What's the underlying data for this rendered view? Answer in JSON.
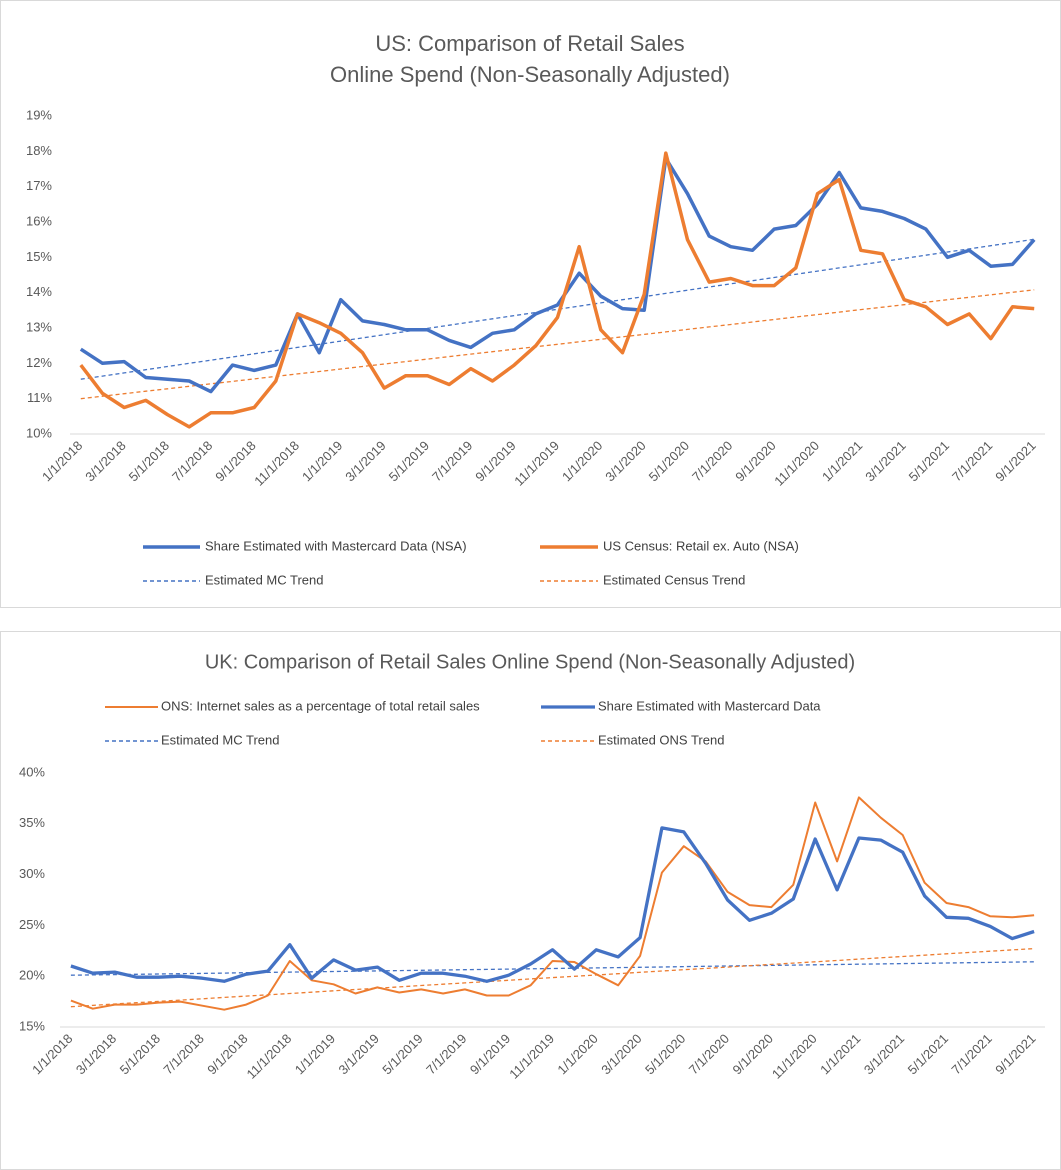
{
  "chart_data": [
    {
      "type": "line",
      "title": "US: Comparison of Retail Sales",
      "subtitle": "Online Spend (Non-Seasonally Adjusted)",
      "categories": [
        "1/1/2018",
        null,
        "3/1/2018",
        null,
        "5/1/2018",
        null,
        "7/1/2018",
        null,
        "9/1/2018",
        null,
        "11/1/2018",
        null,
        "1/1/2019",
        null,
        "3/1/2019",
        null,
        "5/1/2019",
        null,
        "7/1/2019",
        null,
        "9/1/2019",
        null,
        "11/1/2019",
        null,
        "1/1/2020",
        null,
        "3/1/2020",
        null,
        "5/1/2020",
        null,
        "7/1/2020",
        null,
        "9/1/2020",
        null,
        "11/1/2020",
        null,
        "1/1/2021",
        null,
        "3/1/2021",
        null,
        "5/1/2021",
        null,
        "7/1/2021",
        null,
        "9/1/2021"
      ],
      "series": [
        {
          "name": "Share Estimated with Mastercard Data (NSA)",
          "color": "#4472c4",
          "dash": false,
          "width": 3.5,
          "values": [
            12.4,
            12.0,
            12.05,
            11.6,
            11.55,
            11.5,
            11.2,
            11.95,
            11.8,
            11.95,
            13.4,
            12.3,
            13.8,
            13.2,
            13.1,
            12.95,
            12.95,
            12.65,
            12.45,
            12.85,
            12.95,
            13.4,
            13.65,
            14.55,
            13.9,
            13.55,
            13.5,
            17.8,
            16.8,
            15.6,
            15.3,
            15.2,
            15.8,
            15.9,
            16.5,
            17.4,
            16.4,
            16.3,
            16.1,
            15.8,
            15.0,
            15.2,
            14.75,
            14.8,
            15.5
          ]
        },
        {
          "name": "US Census: Retail ex. Auto (NSA)",
          "color": "#ed7d31",
          "dash": false,
          "width": 3.5,
          "values": [
            11.95,
            11.15,
            10.75,
            10.95,
            10.55,
            10.2,
            10.6,
            10.6,
            10.75,
            11.5,
            13.4,
            13.15,
            12.85,
            12.3,
            11.3,
            11.65,
            11.65,
            11.4,
            11.85,
            11.5,
            11.95,
            12.5,
            13.3,
            15.3,
            12.95,
            12.3,
            13.95,
            17.95,
            15.5,
            14.3,
            14.4,
            14.2,
            14.2,
            14.7,
            16.8,
            17.2,
            15.2,
            15.1,
            13.8,
            13.6,
            13.1,
            13.4,
            12.7,
            13.6,
            13.55
          ]
        },
        {
          "name": "Estimated MC Trend",
          "color": "#4472c4",
          "dash": true,
          "width": 1.3,
          "values": [
            11.55,
            11.64,
            11.73,
            11.82,
            11.91,
            12.0,
            12.09,
            12.18,
            12.27,
            12.36,
            12.45,
            12.54,
            12.63,
            12.72,
            12.81,
            12.9,
            12.99,
            13.08,
            13.17,
            13.26,
            13.35,
            13.44,
            13.53,
            13.62,
            13.71,
            13.8,
            13.89,
            13.98,
            14.07,
            14.16,
            14.25,
            14.34,
            14.43,
            14.52,
            14.61,
            14.7,
            14.79,
            14.88,
            14.97,
            15.06,
            15.15,
            15.24,
            15.33,
            15.42,
            15.51
          ]
        },
        {
          "name": "Estimated Census Trend",
          "color": "#ed7d31",
          "dash": true,
          "width": 1.3,
          "values": [
            11.0,
            11.07,
            11.14,
            11.21,
            11.28,
            11.35,
            11.42,
            11.49,
            11.56,
            11.63,
            11.7,
            11.77,
            11.84,
            11.91,
            11.98,
            12.05,
            12.12,
            12.19,
            12.26,
            12.33,
            12.4,
            12.47,
            12.54,
            12.61,
            12.68,
            12.75,
            12.82,
            12.89,
            12.96,
            13.03,
            13.1,
            13.17,
            13.24,
            13.31,
            13.38,
            13.45,
            13.52,
            13.59,
            13.66,
            13.73,
            13.8,
            13.87,
            13.94,
            14.01,
            14.08
          ]
        }
      ],
      "ylim": [
        10,
        19
      ],
      "yticks": [
        {
          "value": 10,
          "label": "10%"
        },
        {
          "value": 11,
          "label": "11%"
        },
        {
          "value": 12,
          "label": "12%"
        },
        {
          "value": 13,
          "label": "13%"
        },
        {
          "value": 14,
          "label": "14%"
        },
        {
          "value": 15,
          "label": "15%"
        },
        {
          "value": 16,
          "label": "16%"
        },
        {
          "value": 17,
          "label": "17%"
        },
        {
          "value": 18,
          "label": "18%"
        },
        {
          "value": 19,
          "label": "19%"
        }
      ],
      "grid": false,
      "legend": "bottom"
    },
    {
      "type": "line",
      "title": "UK: Comparison of Retail Sales Online Spend (Non-Seasonally Adjusted)",
      "categories": [
        "1/1/2018",
        null,
        "3/1/2018",
        null,
        "5/1/2018",
        null,
        "7/1/2018",
        null,
        "9/1/2018",
        null,
        "11/1/2018",
        null,
        "1/1/2019",
        null,
        "3/1/2019",
        null,
        "5/1/2019",
        null,
        "7/1/2019",
        null,
        "9/1/2019",
        null,
        "11/1/2019",
        null,
        "1/1/2020",
        null,
        "3/1/2020",
        null,
        "5/1/2020",
        null,
        "7/1/2020",
        null,
        "9/1/2020",
        null,
        "11/1/2020",
        null,
        "1/1/2021",
        null,
        "3/1/2021",
        null,
        "5/1/2021",
        null,
        "7/1/2021",
        null,
        "9/1/2021"
      ],
      "series": [
        {
          "name": "ONS: Internet sales as a percentage of total retail sales",
          "color": "#ed7d31",
          "dash": false,
          "width": 2,
          "values": [
            17.6,
            16.8,
            17.2,
            17.2,
            17.4,
            17.5,
            17.1,
            16.7,
            17.2,
            18.1,
            21.5,
            19.6,
            19.2,
            18.3,
            18.9,
            18.4,
            18.7,
            18.3,
            18.7,
            18.1,
            18.1,
            19.1,
            21.5,
            21.4,
            20.2,
            19.1,
            22.0,
            30.2,
            32.8,
            31.3,
            28.3,
            27.0,
            26.8,
            29.0,
            37.1,
            31.3,
            37.6,
            35.6,
            33.9,
            29.2,
            27.2,
            26.8,
            25.9,
            25.8,
            26.0
          ]
        },
        {
          "name": "Share Estimated with Mastercard Data",
          "color": "#4472c4",
          "dash": false,
          "width": 3.3,
          "values": [
            21.0,
            20.3,
            20.4,
            19.9,
            19.9,
            20.0,
            19.8,
            19.5,
            20.2,
            20.5,
            23.1,
            19.8,
            21.6,
            20.6,
            20.9,
            19.6,
            20.3,
            20.3,
            20.0,
            19.5,
            20.1,
            21.2,
            22.6,
            20.7,
            22.6,
            21.9,
            23.8,
            34.6,
            34.2,
            31.1,
            27.5,
            25.5,
            26.2,
            27.6,
            33.5,
            28.5,
            33.6,
            33.4,
            32.2,
            27.9,
            25.8,
            25.7,
            24.9,
            23.7,
            24.4
          ]
        },
        {
          "name": "Estimated MC Trend",
          "color": "#4472c4",
          "dash": true,
          "width": 1.3,
          "values": [
            20.1,
            20.13,
            20.16,
            20.19,
            20.22,
            20.25,
            20.28,
            20.31,
            20.34,
            20.37,
            20.4,
            20.43,
            20.46,
            20.49,
            20.52,
            20.55,
            20.58,
            20.61,
            20.64,
            20.67,
            20.7,
            20.73,
            20.76,
            20.79,
            20.82,
            20.85,
            20.88,
            20.91,
            20.94,
            20.97,
            21.0,
            21.03,
            21.06,
            21.09,
            21.12,
            21.15,
            21.18,
            21.21,
            21.24,
            21.27,
            21.3,
            21.33,
            21.36,
            21.39,
            21.42
          ]
        },
        {
          "name": "Estimated ONS Trend",
          "color": "#ed7d31",
          "dash": true,
          "width": 1.3,
          "values": [
            17.0,
            17.13,
            17.26,
            17.39,
            17.52,
            17.65,
            17.78,
            17.91,
            18.04,
            18.17,
            18.3,
            18.43,
            18.56,
            18.69,
            18.82,
            18.95,
            19.08,
            19.21,
            19.34,
            19.47,
            19.6,
            19.73,
            19.86,
            19.99,
            20.12,
            20.25,
            20.38,
            20.51,
            20.64,
            20.77,
            20.9,
            21.03,
            21.16,
            21.29,
            21.42,
            21.55,
            21.68,
            21.81,
            21.94,
            22.07,
            22.2,
            22.33,
            22.46,
            22.59,
            22.72
          ]
        }
      ],
      "ylim": [
        15,
        40
      ],
      "yticks": [
        {
          "value": 15,
          "label": "15%"
        },
        {
          "value": 20,
          "label": "20%"
        },
        {
          "value": 25,
          "label": "25%"
        },
        {
          "value": 30,
          "label": "30%"
        },
        {
          "value": 35,
          "label": "35%"
        },
        {
          "value": 40,
          "label": "40%"
        }
      ],
      "grid": false,
      "legend": "top"
    }
  ]
}
